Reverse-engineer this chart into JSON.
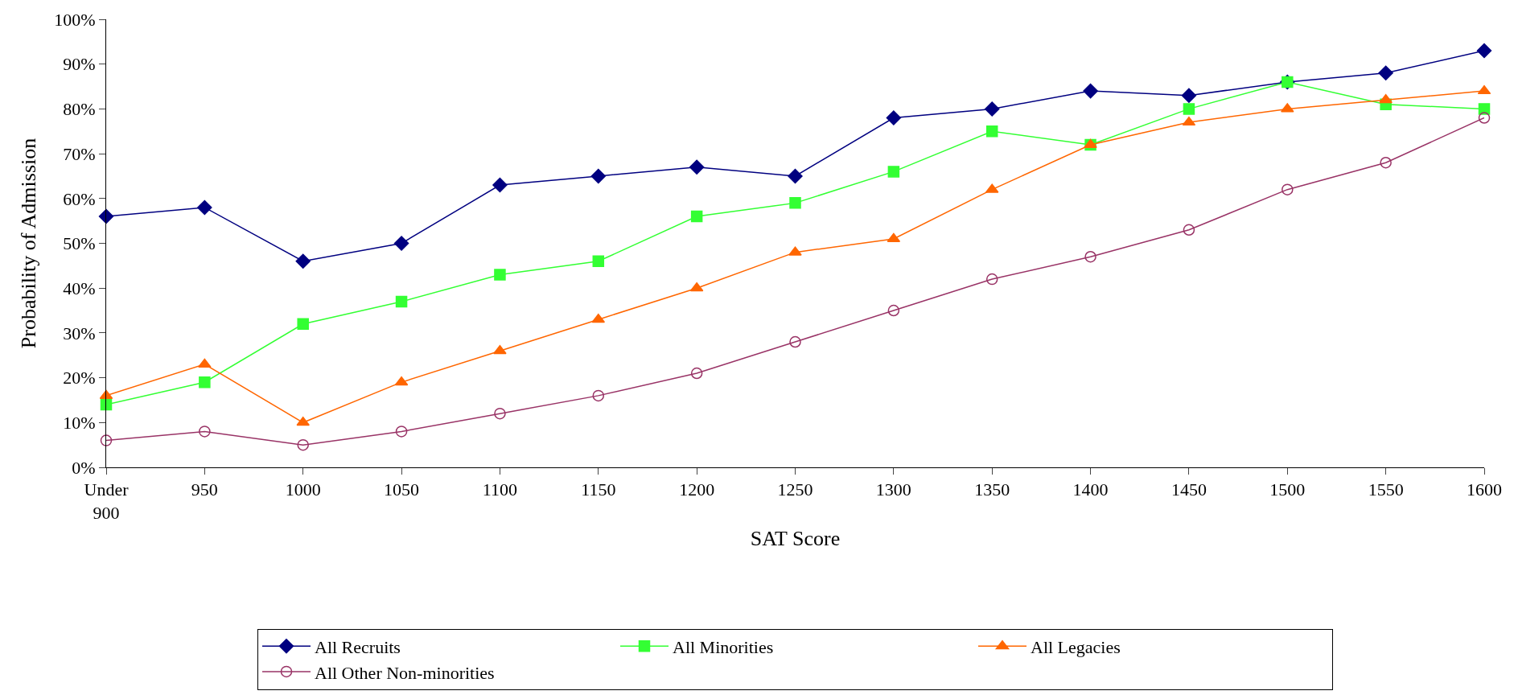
{
  "chart_data": {
    "type": "line",
    "xlabel": "SAT Score",
    "ylabel": "Probability of Admission",
    "categories": [
      "Under 900",
      "950",
      "1000",
      "1050",
      "1100",
      "1150",
      "1200",
      "1250",
      "1300",
      "1350",
      "1400",
      "1450",
      "1500",
      "1550",
      "1600"
    ],
    "series": [
      {
        "name": "All Recruits",
        "color": "#000080",
        "marker": "diamond",
        "values": [
          56,
          58,
          46,
          50,
          63,
          65,
          67,
          65,
          78,
          80,
          84,
          83,
          86,
          88,
          93
        ]
      },
      {
        "name": "All Minorities",
        "color": "#33ff33",
        "marker": "square",
        "values": [
          14,
          19,
          32,
          37,
          43,
          46,
          56,
          59,
          66,
          75,
          72,
          80,
          86,
          81,
          80
        ]
      },
      {
        "name": "All Legacies",
        "color": "#ff6600",
        "marker": "triangle",
        "values": [
          16,
          23,
          10,
          19,
          26,
          33,
          40,
          48,
          51,
          62,
          72,
          77,
          80,
          82,
          84
        ]
      },
      {
        "name": "All Other Non-minorities",
        "color": "#993366",
        "marker": "circle",
        "values": [
          6,
          8,
          5,
          8,
          12,
          16,
          21,
          28,
          35,
          42,
          47,
          53,
          62,
          68,
          78
        ]
      }
    ],
    "ylim": [
      0,
      100
    ],
    "yticks": [
      {
        "value": 0,
        "label": "0%"
      },
      {
        "value": 10,
        "label": "10%"
      },
      {
        "value": 20,
        "label": "20%"
      },
      {
        "value": 30,
        "label": "30%"
      },
      {
        "value": 40,
        "label": "40%"
      },
      {
        "value": 50,
        "label": "50%"
      },
      {
        "value": 60,
        "label": "60%"
      },
      {
        "value": 70,
        "label": "70%"
      },
      {
        "value": 80,
        "label": "80%"
      },
      {
        "value": 90,
        "label": "90%"
      },
      {
        "value": 100,
        "label": "100%"
      }
    ],
    "grid": false,
    "legend": "bottom",
    "line_style": "solid"
  }
}
